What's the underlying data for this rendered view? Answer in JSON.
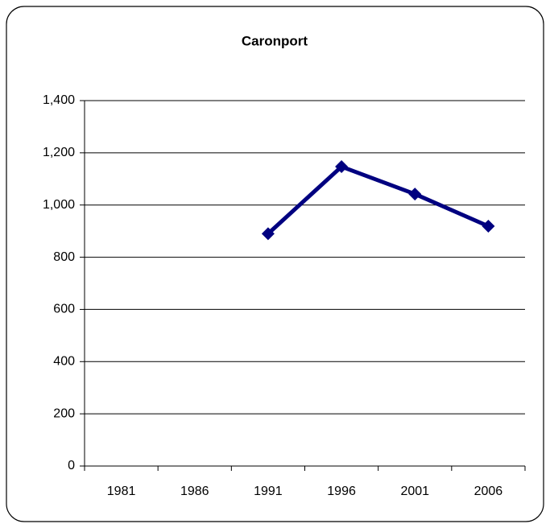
{
  "chart_data": {
    "type": "line",
    "title": "Caronport",
    "categories": [
      "1981",
      "1986",
      "1991",
      "1996",
      "2001",
      "2006"
    ],
    "values": [
      null,
      null,
      890,
      1147,
      1042,
      919
    ],
    "color": "#000080",
    "ylim": [
      0,
      1400
    ],
    "yticks": [
      0,
      200,
      400,
      600,
      800,
      {
        "value": 1000,
        "label": "1,000"
      },
      {
        "value": 1200,
        "label": "1,200"
      },
      {
        "value": 1400,
        "label": "1,400"
      }
    ],
    "grid": true
  }
}
